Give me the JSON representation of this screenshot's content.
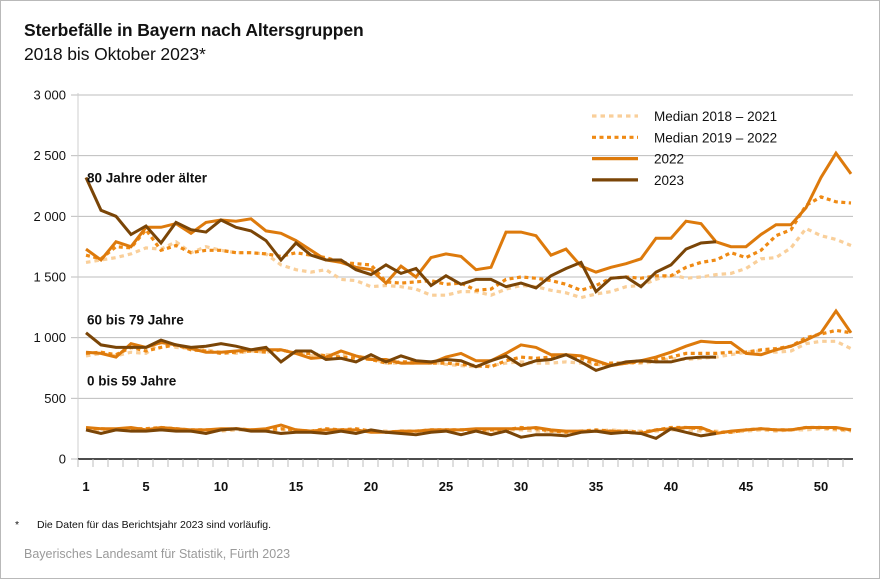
{
  "chart_data": {
    "type": "line",
    "title": "Sterbefälle in Bayern nach Altersgruppen",
    "subtitle": "2018 bis Oktober 2023*",
    "xlabel": "",
    "ylabel": "",
    "xlim": [
      1,
      52
    ],
    "ylim": [
      0,
      3000
    ],
    "y_ticks": [
      0,
      500,
      1000,
      1500,
      2000,
      2500,
      3000
    ],
    "y_tick_labels": [
      "0",
      "500",
      "1 000",
      "1 500",
      "2 000",
      "2 500",
      "3 000"
    ],
    "x_ticks": [
      1,
      5,
      10,
      15,
      20,
      25,
      30,
      35,
      40,
      45,
      50
    ],
    "x_tick_labels": [
      "1",
      "5",
      "10",
      "15",
      "20",
      "25",
      "30",
      "35",
      "40",
      "45",
      "50"
    ],
    "grid": "horizontal",
    "legend_position": "top-right",
    "legend": [
      {
        "key": "median_2018_2021",
        "label": "Median 2018 – 2021",
        "color": "#f9cf9a",
        "style": "dotted"
      },
      {
        "key": "median_2019_2022",
        "label": "Median 2019 – 2022",
        "color": "#ef8a14",
        "style": "dotted"
      },
      {
        "key": "y2022",
        "label": "2022",
        "color": "#dd7a0c",
        "style": "solid"
      },
      {
        "key": "y2023",
        "label": "2023",
        "color": "#7a4507",
        "style": "solid"
      }
    ],
    "groups": [
      {
        "label": "80 Jahre oder älter",
        "series": {
          "median_2018_2021": [
            1620,
            1640,
            1660,
            1690,
            1740,
            1730,
            1790,
            1700,
            1750,
            1720,
            1700,
            1700,
            1690,
            1600,
            1560,
            1540,
            1560,
            1480,
            1470,
            1420,
            1430,
            1420,
            1400,
            1350,
            1350,
            1380,
            1380,
            1350,
            1400,
            1430,
            1420,
            1390,
            1370,
            1330,
            1360,
            1380,
            1420,
            1430,
            1480,
            1520,
            1490,
            1500,
            1520,
            1530,
            1570,
            1650,
            1660,
            1740,
            1900,
            1840,
            1810,
            1760
          ],
          "median_2019_2022": [
            1680,
            1650,
            1750,
            1740,
            1890,
            1720,
            1760,
            1700,
            1720,
            1720,
            1700,
            1700,
            1690,
            1670,
            1700,
            1680,
            1660,
            1620,
            1610,
            1600,
            1460,
            1450,
            1460,
            1470,
            1440,
            1450,
            1390,
            1400,
            1480,
            1500,
            1490,
            1470,
            1440,
            1390,
            1430,
            1490,
            1500,
            1490,
            1510,
            1510,
            1580,
            1620,
            1640,
            1700,
            1660,
            1720,
            1840,
            1890,
            2090,
            2160,
            2120,
            2110
          ],
          "y2022": [
            1730,
            1640,
            1790,
            1750,
            1910,
            1910,
            1940,
            1860,
            1950,
            1970,
            1960,
            1980,
            1880,
            1860,
            1800,
            1720,
            1640,
            1620,
            1580,
            1560,
            1450,
            1590,
            1500,
            1660,
            1690,
            1670,
            1560,
            1580,
            1870,
            1870,
            1840,
            1680,
            1730,
            1590,
            1540,
            1580,
            1610,
            1650,
            1820,
            1820,
            1960,
            1940,
            1790,
            1750,
            1750,
            1850,
            1930,
            1930,
            2070,
            2320,
            2520,
            2350
          ],
          "y2023": [
            2320,
            2050,
            2000,
            1850,
            1920,
            1780,
            1950,
            1890,
            1870,
            1970,
            1910,
            1880,
            1800,
            1640,
            1780,
            1680,
            1640,
            1640,
            1560,
            1520,
            1600,
            1530,
            1570,
            1430,
            1510,
            1440,
            1480,
            1480,
            1420,
            1450,
            1410,
            1510,
            1570,
            1620,
            1380,
            1490,
            1500,
            1420,
            1540,
            1600,
            1730,
            1780,
            1790
          ]
        }
      },
      {
        "label": "60 bis 79 Jahre",
        "series": {
          "median_2018_2021": [
            850,
            870,
            850,
            880,
            870,
            960,
            920,
            910,
            900,
            880,
            870,
            890,
            880,
            900,
            870,
            850,
            860,
            860,
            850,
            830,
            790,
            790,
            790,
            800,
            780,
            770,
            760,
            770,
            790,
            800,
            790,
            790,
            800,
            790,
            780,
            770,
            790,
            790,
            800,
            830,
            820,
            830,
            840,
            860,
            880,
            890,
            880,
            890,
            950,
            970,
            970,
            910
          ],
          "median_2019_2022": [
            870,
            880,
            860,
            920,
            890,
            920,
            940,
            900,
            890,
            870,
            880,
            890,
            880,
            900,
            870,
            870,
            850,
            840,
            830,
            820,
            790,
            800,
            800,
            790,
            790,
            780,
            770,
            760,
            810,
            840,
            830,
            840,
            860,
            830,
            780,
            790,
            790,
            800,
            820,
            840,
            870,
            870,
            870,
            880,
            880,
            900,
            910,
            930,
            1000,
            1030,
            1060,
            1040
          ],
          "y2022": [
            880,
            870,
            840,
            950,
            920,
            960,
            940,
            910,
            880,
            880,
            890,
            900,
            900,
            900,
            870,
            830,
            840,
            890,
            850,
            820,
            820,
            790,
            790,
            790,
            840,
            870,
            810,
            810,
            870,
            940,
            920,
            860,
            860,
            850,
            810,
            770,
            790,
            810,
            840,
            880,
            930,
            970,
            960,
            960,
            870,
            860,
            900,
            930,
            980,
            1040,
            1220,
            1040
          ],
          "y2023": [
            1040,
            940,
            920,
            920,
            920,
            980,
            940,
            920,
            930,
            950,
            930,
            900,
            920,
            800,
            890,
            890,
            820,
            830,
            800,
            860,
            800,
            850,
            810,
            800,
            820,
            810,
            760,
            810,
            850,
            770,
            810,
            820,
            860,
            800,
            730,
            770,
            800,
            810,
            800,
            800,
            830,
            840,
            840
          ]
        }
      },
      {
        "label": "0 bis 59 Jahre",
        "series": {
          "median_2018_2021": [
            240,
            240,
            240,
            240,
            250,
            250,
            240,
            230,
            240,
            230,
            240,
            240,
            230,
            240,
            240,
            230,
            240,
            240,
            230,
            230,
            230,
            220,
            230,
            230,
            240,
            240,
            230,
            230,
            240,
            240,
            230,
            230,
            220,
            230,
            230,
            240,
            230,
            230,
            230,
            240,
            240,
            230,
            230,
            220,
            230,
            240,
            230,
            240,
            240,
            250,
            240,
            230
          ],
          "median_2019_2022": [
            250,
            250,
            240,
            250,
            250,
            260,
            250,
            240,
            240,
            240,
            250,
            240,
            240,
            250,
            240,
            230,
            250,
            240,
            250,
            230,
            220,
            230,
            230,
            240,
            240,
            240,
            240,
            240,
            240,
            260,
            250,
            230,
            220,
            230,
            240,
            230,
            230,
            220,
            240,
            260,
            260,
            250,
            220,
            220,
            240,
            250,
            240,
            240,
            260,
            260,
            250,
            240
          ],
          "y2022": [
            260,
            250,
            250,
            260,
            240,
            260,
            250,
            240,
            240,
            250,
            250,
            240,
            250,
            280,
            240,
            230,
            240,
            240,
            240,
            220,
            220,
            230,
            230,
            240,
            240,
            240,
            250,
            250,
            250,
            250,
            260,
            240,
            230,
            230,
            230,
            230,
            220,
            210,
            240,
            250,
            260,
            260,
            210,
            230,
            240,
            250,
            240,
            240,
            260,
            260,
            260,
            240
          ],
          "y2023": [
            240,
            210,
            240,
            230,
            230,
            240,
            230,
            230,
            210,
            240,
            250,
            230,
            230,
            210,
            220,
            220,
            210,
            230,
            210,
            240,
            220,
            210,
            200,
            220,
            230,
            200,
            230,
            200,
            230,
            180,
            200,
            200,
            190,
            220,
            230,
            210,
            220,
            210,
            170,
            250,
            220,
            190,
            210
          ]
        }
      }
    ]
  },
  "footnote": {
    "marker": "*",
    "text": "Die Daten für das Berichtsjahr 2023 sind vorläufig."
  },
  "source": "Bayerisches Landesamt für Statistik, Fürth 2023"
}
